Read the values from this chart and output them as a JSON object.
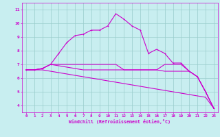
{
  "xlabel": "Windchill (Refroidissement éolien,°C)",
  "xlim": [
    -0.5,
    23.5
  ],
  "ylim": [
    3.5,
    11.5
  ],
  "yticks": [
    4,
    5,
    6,
    7,
    8,
    9,
    10,
    11
  ],
  "xticks": [
    0,
    1,
    2,
    3,
    4,
    5,
    6,
    7,
    8,
    9,
    10,
    11,
    12,
    13,
    14,
    15,
    16,
    17,
    18,
    19,
    20,
    21,
    22,
    23
  ],
  "background_color": "#c8eef0",
  "line_color": "#cc00cc",
  "grid_color": "#99cccc",
  "line1_x": [
    0,
    1,
    2,
    3,
    4,
    5,
    6,
    7,
    8,
    9,
    10,
    11,
    12,
    13,
    14,
    15,
    16,
    17,
    18,
    19,
    20,
    21,
    22,
    23
  ],
  "line1_y": [
    6.6,
    6.6,
    6.7,
    7.0,
    7.8,
    8.6,
    9.1,
    9.2,
    9.5,
    9.5,
    9.8,
    10.7,
    10.3,
    9.8,
    9.5,
    7.8,
    8.1,
    7.8,
    7.1,
    7.1,
    6.5,
    6.1,
    5.0,
    3.8
  ],
  "line2_x": [
    0,
    1,
    2,
    3,
    4,
    5,
    6,
    7,
    8,
    9,
    10,
    11,
    12,
    13,
    14,
    15,
    16,
    17,
    18,
    19,
    20,
    21,
    22,
    23
  ],
  "line2_y": [
    6.6,
    6.6,
    6.7,
    7.0,
    7.0,
    7.0,
    7.0,
    7.0,
    7.0,
    7.0,
    7.0,
    7.0,
    6.6,
    6.6,
    6.6,
    6.6,
    6.6,
    7.0,
    7.0,
    7.0,
    6.5,
    6.1,
    5.0,
    3.8
  ],
  "line3_x": [
    0,
    1,
    2,
    3,
    4,
    5,
    6,
    7,
    8,
    9,
    10,
    11,
    12,
    13,
    14,
    15,
    16,
    17,
    18,
    19,
    20,
    21,
    22,
    23
  ],
  "line3_y": [
    6.6,
    6.6,
    6.7,
    7.0,
    6.9,
    6.8,
    6.7,
    6.6,
    6.6,
    6.6,
    6.6,
    6.6,
    6.6,
    6.6,
    6.6,
    6.6,
    6.6,
    6.5,
    6.5,
    6.5,
    6.5,
    6.1,
    5.0,
    3.8
  ],
  "line4_x": [
    0,
    1,
    2,
    3,
    4,
    5,
    6,
    7,
    8,
    9,
    10,
    11,
    12,
    13,
    14,
    15,
    16,
    17,
    18,
    19,
    20,
    21,
    22,
    23
  ],
  "line4_y": [
    6.6,
    6.6,
    6.6,
    6.5,
    6.4,
    6.3,
    6.2,
    6.1,
    6.0,
    5.9,
    5.8,
    5.7,
    5.6,
    5.5,
    5.4,
    5.3,
    5.2,
    5.1,
    5.0,
    4.9,
    4.8,
    4.7,
    4.6,
    3.8
  ]
}
